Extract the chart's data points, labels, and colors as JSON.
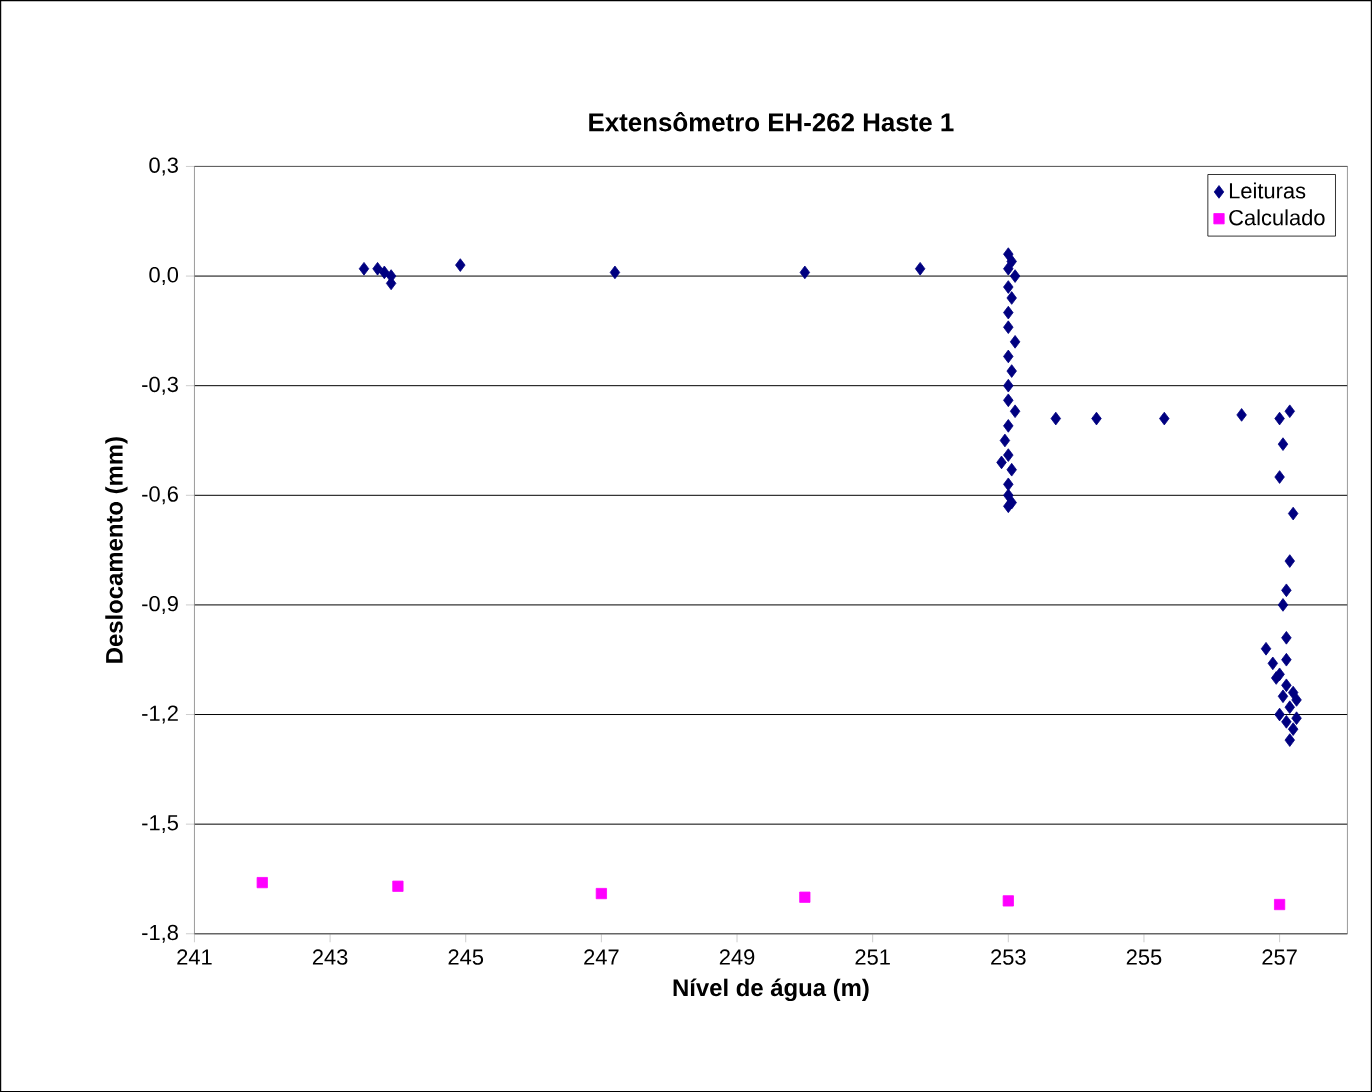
{
  "chart_data": {
    "type": "scatter",
    "title": "Extensômetro EH-262 Haste 1",
    "xlabel": "Nível de água (m)",
    "ylabel": "Deslocamento (mm)",
    "xlim": [
      241,
      258
    ],
    "xticks": [
      241,
      243,
      245,
      247,
      249,
      251,
      253,
      255,
      257
    ],
    "ylim": [
      -1.8,
      0.3
    ],
    "yticks": [
      {
        "value": -1.8,
        "label": "-1,8"
      },
      {
        "value": -1.5,
        "label": "-1,5"
      },
      {
        "value": -1.2,
        "label": "-1,2"
      },
      {
        "value": -0.9,
        "label": "-0,9"
      },
      {
        "value": -0.6,
        "label": "-0,6"
      },
      {
        "value": -0.3,
        "label": "-0,3"
      },
      {
        "value": 0,
        "label": "0,0"
      },
      {
        "value": 0.3,
        "label": "0,3"
      }
    ],
    "grid": "y",
    "legend": "top right",
    "series": [
      {
        "name": "Leituras",
        "color": "#000080",
        "marker": "diamond",
        "x": [
          243.5,
          243.7,
          243.8,
          243.9,
          243.9,
          244.92,
          247.2,
          250.0,
          251.7,
          253.0,
          253.05,
          253.0,
          253.1,
          253.0,
          253.05,
          253.0,
          253.0,
          253.1,
          253.0,
          253.05,
          253.0,
          253.0,
          253.1,
          253.0,
          252.95,
          253.0,
          253.05,
          253.0,
          252.9,
          253.0,
          253.0,
          253.05,
          253.7,
          254.3,
          255.3,
          256.44,
          257.15,
          257.0,
          257.05,
          257.0,
          257.2,
          257.15,
          257.1,
          257.05,
          257.1,
          257.1,
          256.8,
          256.9,
          257.0,
          257.1,
          257.2,
          256.95,
          257.05,
          257.15,
          257.25,
          257.0,
          257.1,
          257.2,
          257.15,
          257.25
        ],
        "values": [
          0.02,
          0.02,
          0.01,
          0.0,
          -0.02,
          0.03,
          0.01,
          0.01,
          0.02,
          0.06,
          0.04,
          0.02,
          0.0,
          -0.03,
          -0.06,
          -0.1,
          -0.14,
          -0.18,
          -0.22,
          -0.26,
          -0.3,
          -0.34,
          -0.37,
          -0.41,
          -0.45,
          -0.49,
          -0.53,
          -0.57,
          -0.51,
          -0.6,
          -0.63,
          -0.62,
          -0.39,
          -0.39,
          -0.39,
          -0.38,
          -0.37,
          -0.39,
          -0.46,
          -0.55,
          -0.65,
          -0.78,
          -0.86,
          -0.9,
          -0.99,
          -1.05,
          -1.02,
          -1.06,
          -1.09,
          -1.12,
          -1.14,
          -1.1,
          -1.15,
          -1.18,
          -1.16,
          -1.2,
          -1.22,
          -1.24,
          -1.27,
          -1.21
        ]
      },
      {
        "name": "Calculado",
        "color": "#ff00ff",
        "marker": "square",
        "x": [
          242,
          244,
          247,
          250,
          253,
          257
        ],
        "values": [
          -1.66,
          -1.67,
          -1.69,
          -1.7,
          -1.71,
          -1.72
        ]
      }
    ]
  }
}
